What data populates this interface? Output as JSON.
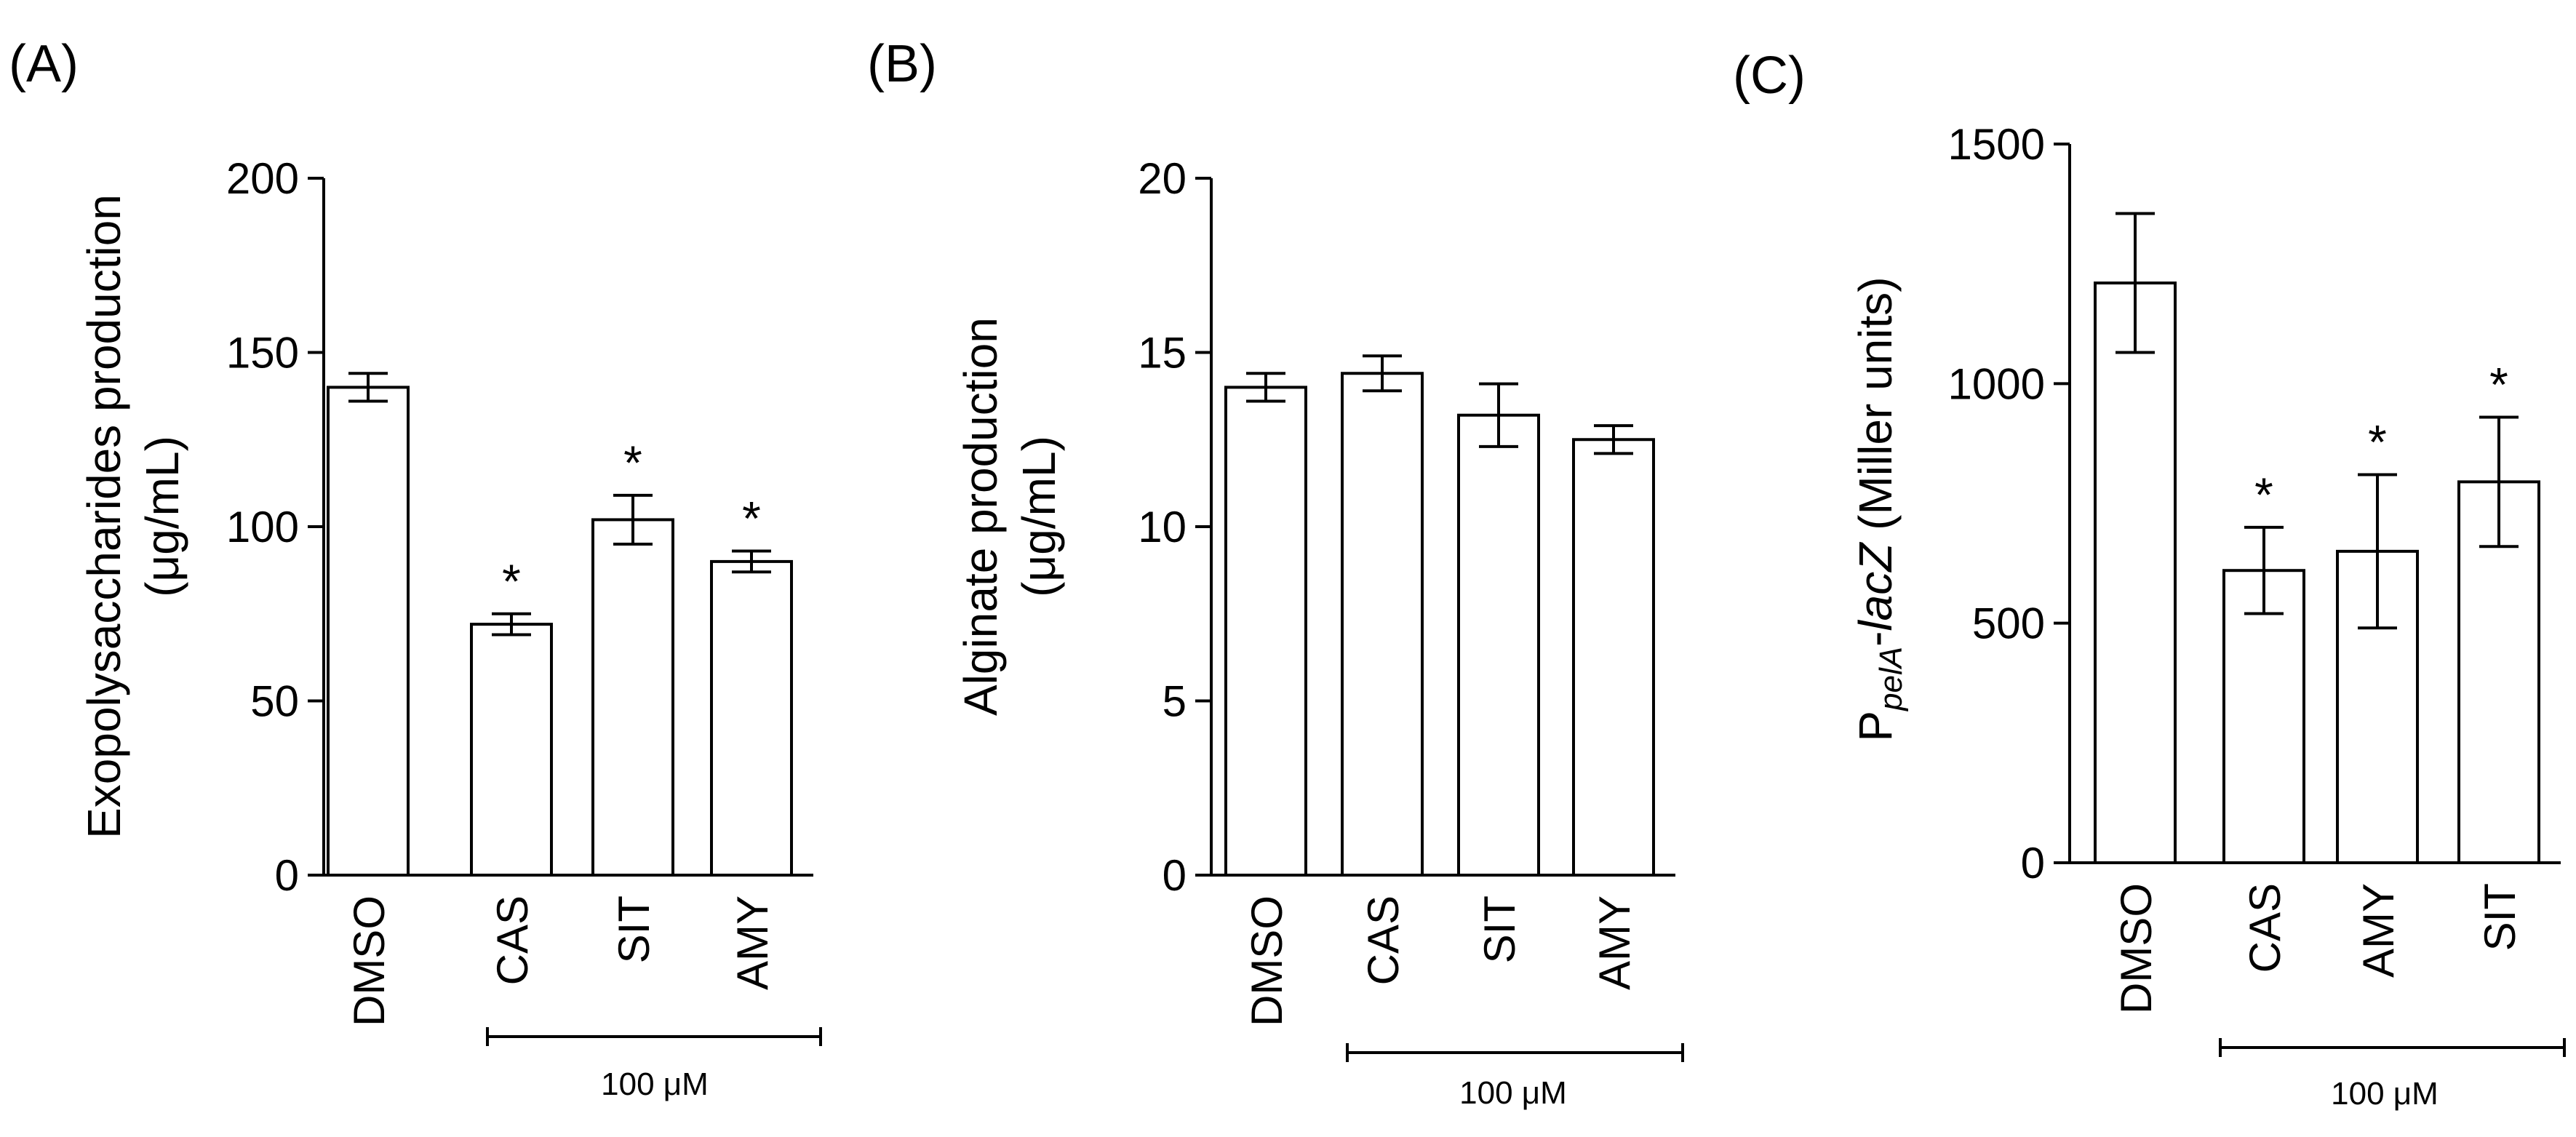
{
  "chart_data": [
    {
      "type": "bar",
      "panel_label": "(A)",
      "ylabel_line1": "Exopolysaccharides production",
      "ylabel_line2": "(μg/mL)",
      "ylim": [
        0,
        200
      ],
      "yticks": [
        "0",
        "50",
        "100",
        "150",
        "200"
      ],
      "categories": [
        "DMSO",
        "CAS",
        "SIT",
        "AMY"
      ],
      "values": [
        140,
        72,
        102,
        90
      ],
      "errors": [
        4,
        3,
        7,
        3
      ],
      "significance": [
        "",
        "*",
        "*",
        "*"
      ],
      "bracket_label": "100 μM"
    },
    {
      "type": "bar",
      "panel_label": "(B)",
      "ylabel_line1": "Alginate production",
      "ylabel_line2": "(μg/mL)",
      "ylim": [
        0,
        20
      ],
      "yticks": [
        "0",
        "5",
        "10",
        "15",
        "20"
      ],
      "categories": [
        "DMSO",
        "CAS",
        "SIT",
        "AMY"
      ],
      "values": [
        14.0,
        14.4,
        13.2,
        12.5
      ],
      "errors": [
        0.4,
        0.5,
        0.9,
        0.4
      ],
      "significance": [
        "",
        "",
        "",
        ""
      ],
      "bracket_label": "100 μM"
    },
    {
      "type": "bar",
      "panel_label": "(C)",
      "ylabel_prefix": "P",
      "ylabel_sub": "pelA",
      "ylabel_mid": "-",
      "ylabel_italic": "lacZ",
      "ylabel_suffix": " (Miller units)",
      "ylim": [
        0,
        1500
      ],
      "yticks": [
        "0",
        "500",
        "1000",
        "1500"
      ],
      "categories": [
        "DMSO",
        "CAS",
        "AMY",
        "SIT"
      ],
      "values": [
        1210,
        610,
        650,
        795
      ],
      "errors": [
        145,
        90,
        160,
        135
      ],
      "significance": [
        "",
        "*",
        "*",
        "*"
      ],
      "bracket_label": "100 μM"
    }
  ]
}
